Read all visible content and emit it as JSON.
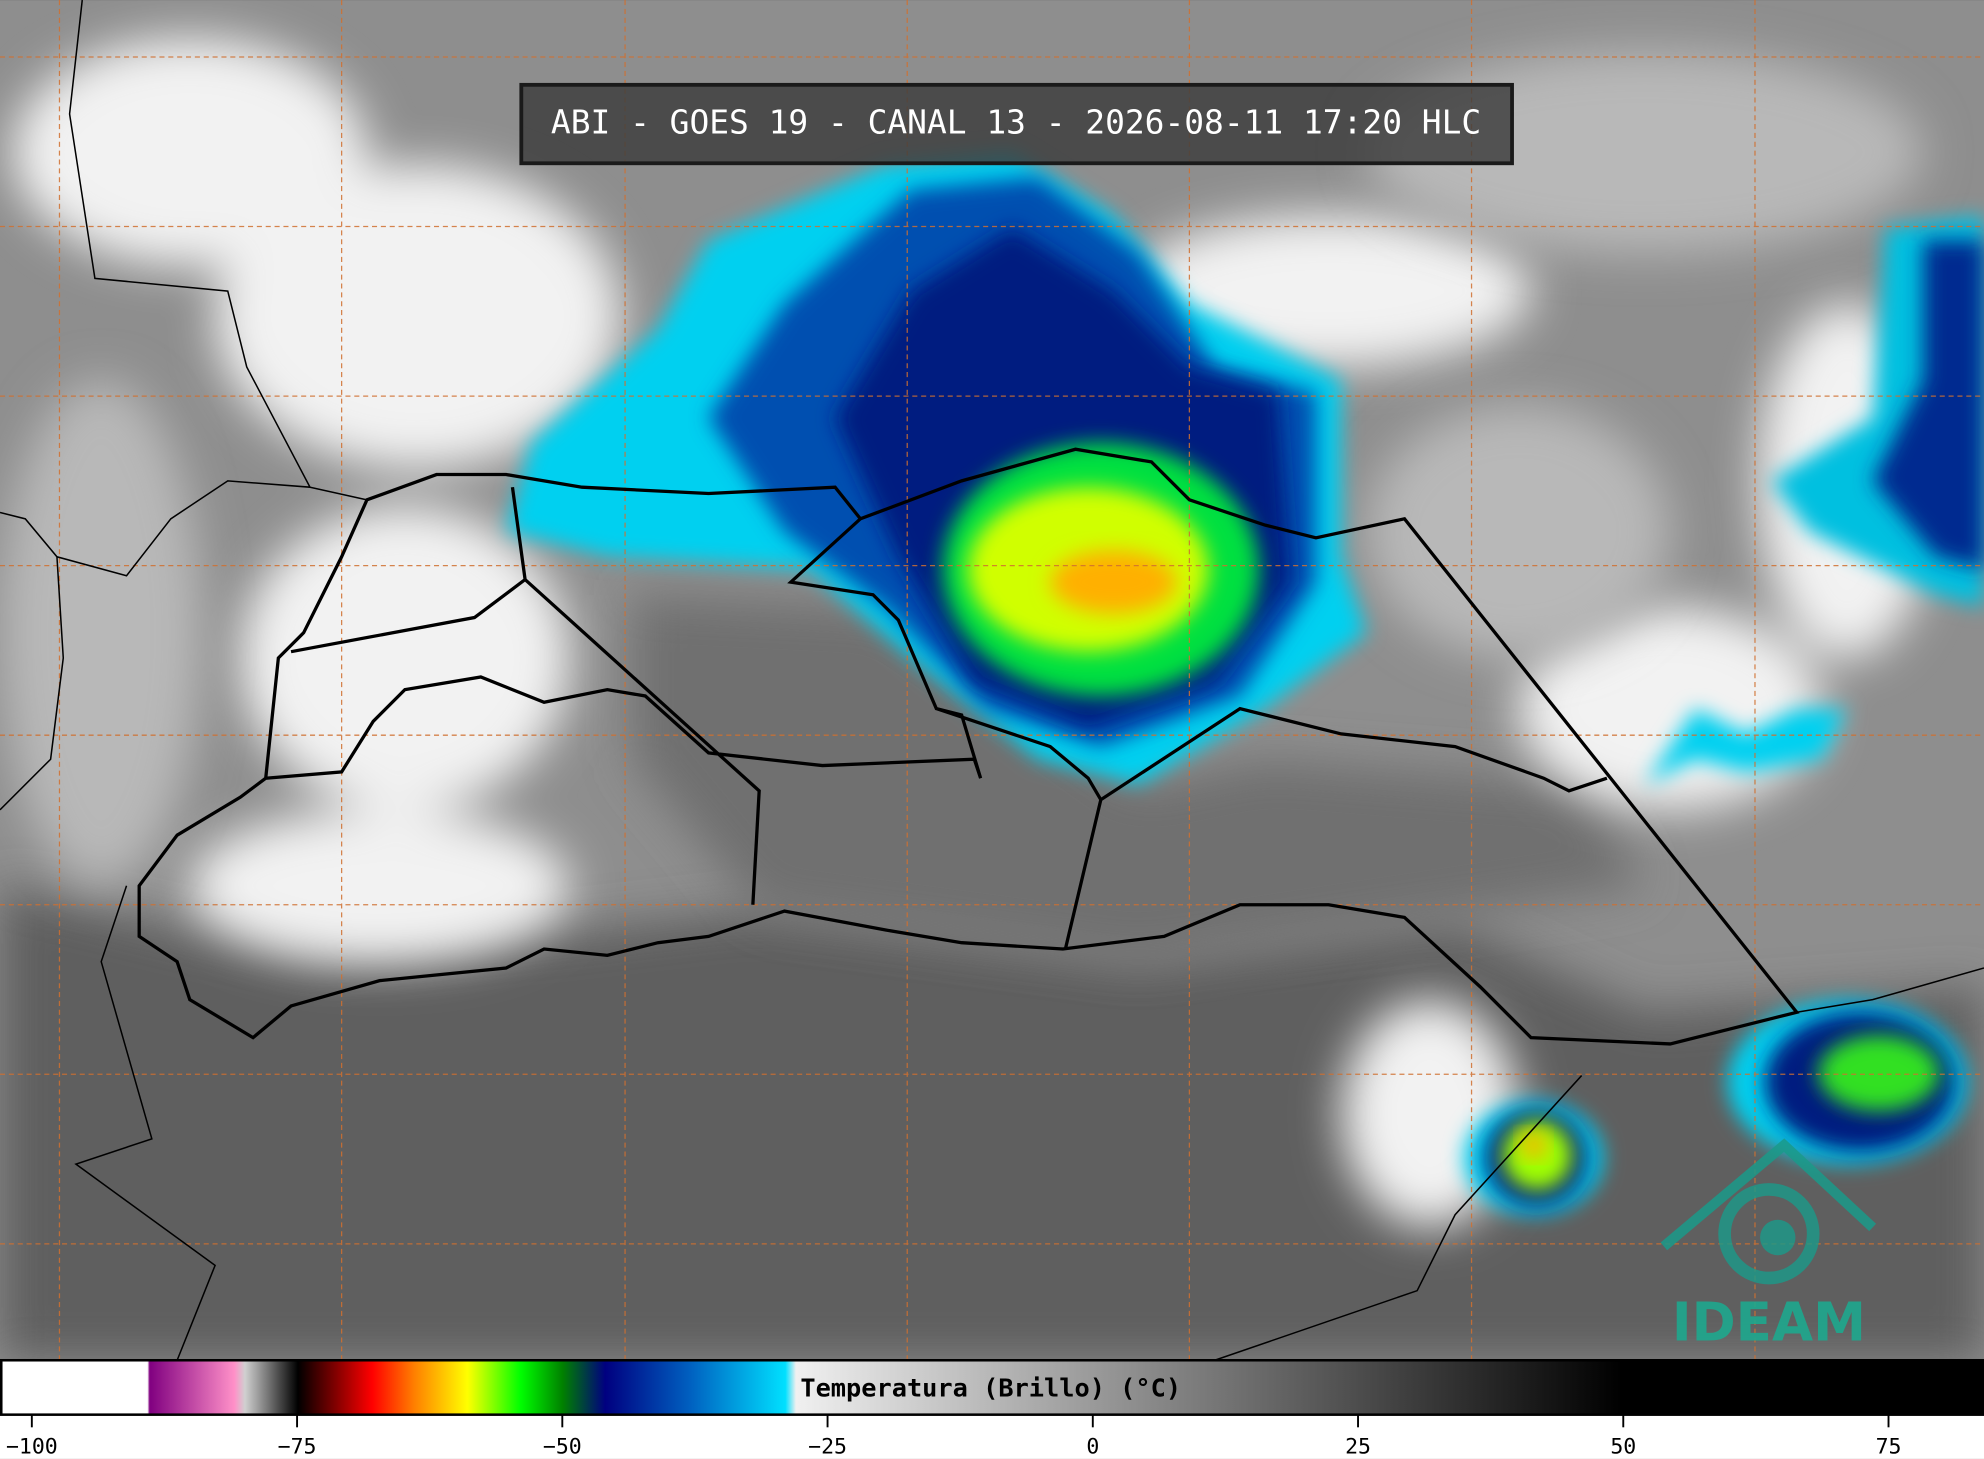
{
  "title": "ABI - GOES 19 - CANAL 13 - 2026-08-11 17:20 HLC",
  "logo": "IDEAM",
  "colorbar": {
    "label": "Temperatura (Brillo) (°C)",
    "lim": [
      -103,
      84
    ],
    "ticks": [
      {
        "value": -100,
        "label": "−100"
      },
      {
        "value": -75,
        "label": "−75"
      },
      {
        "value": -50,
        "label": "−50"
      },
      {
        "value": -25,
        "label": "−25"
      },
      0,
      25,
      50,
      75
    ],
    "colorscale": [
      {
        "value": -103,
        "color": "#ffffff"
      },
      {
        "value": -89.2,
        "color": "#ffffff"
      },
      {
        "value": -89,
        "color": "#800080"
      },
      {
        "value": -81,
        "color": "#ff90c8"
      },
      {
        "value": -80,
        "color": "#d0d0d0"
      },
      {
        "value": -75,
        "color": "#000000"
      },
      {
        "value": -68,
        "color": "#ff0000"
      },
      {
        "value": -64,
        "color": "#ff8000"
      },
      {
        "value": -59,
        "color": "#ffff00"
      },
      {
        "value": -54,
        "color": "#00ff00"
      },
      {
        "value": -50,
        "color": "#008000"
      },
      {
        "value": -46,
        "color": "#000080"
      },
      {
        "value": -38,
        "color": "#0060c0"
      },
      {
        "value": -29,
        "color": "#00e0ff"
      },
      {
        "value": -28,
        "color": "#f0f0f0"
      },
      {
        "value": 50,
        "color": "#000000"
      },
      {
        "value": 84,
        "color": "#000000"
      }
    ]
  }
}
